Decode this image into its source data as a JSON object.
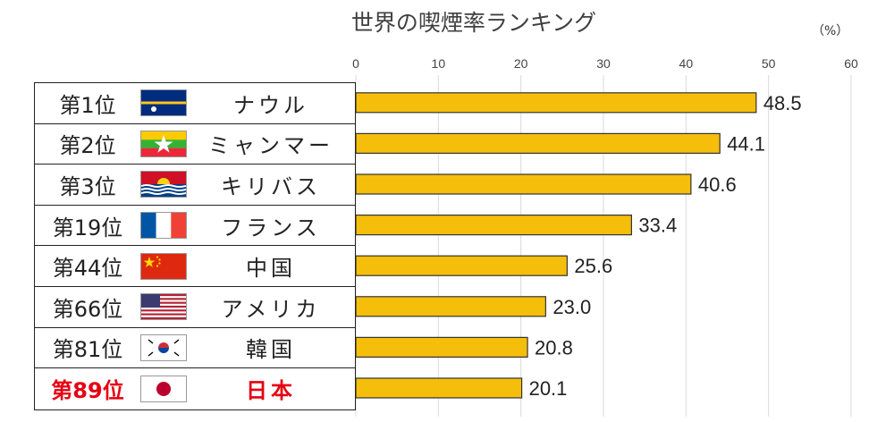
{
  "header": {
    "title": "世界の喫煙率ランキング",
    "unit": "（%）"
  },
  "colors": {
    "bar": "#f5be0b",
    "bar_stroke": "#333333",
    "highlight": "#e60012",
    "grid": "#d9d9d9"
  },
  "rows": [
    {
      "rank": "第1位",
      "country": "ナウル",
      "flag": "nauru-flag-icon"
    },
    {
      "rank": "第2位",
      "country": "ミャンマー",
      "flag": "myanmar-flag-icon"
    },
    {
      "rank": "第3位",
      "country": "キリバス",
      "flag": "kiribati-flag-icon"
    },
    {
      "rank": "第19位",
      "country": "フランス",
      "flag": "france-flag-icon"
    },
    {
      "rank": "第44位",
      "country": "中国",
      "flag": "china-flag-icon"
    },
    {
      "rank": "第66位",
      "country": "アメリカ",
      "flag": "usa-flag-icon"
    },
    {
      "rank": "第81位",
      "country": "韓国",
      "flag": "south-korea-flag-icon"
    },
    {
      "rank": "第89位",
      "country": "日本",
      "flag": "japan-flag-icon",
      "highlight": true
    }
  ],
  "chart_data": {
    "type": "bar",
    "orientation": "horizontal",
    "title": "世界の喫煙率ランキング",
    "unit": "（%）",
    "categories": [
      "ナウル",
      "ミャンマー",
      "キリバス",
      "フランス",
      "中国",
      "アメリカ",
      "韓国",
      "日本"
    ],
    "values": [
      48.5,
      44.1,
      40.6,
      33.4,
      25.6,
      23.0,
      20.8,
      20.1
    ],
    "value_labels": [
      "48.5",
      "44.1",
      "40.6",
      "33.4",
      "25.6",
      "23.0",
      "20.8",
      "20.1"
    ],
    "xlim": [
      0,
      60
    ],
    "ticks": [
      0,
      10,
      20,
      30,
      40,
      50,
      60
    ],
    "tick_labels": [
      "0",
      "10",
      "20",
      "30",
      "40",
      "50",
      "60"
    ],
    "tick_position": "top",
    "grid": true
  }
}
